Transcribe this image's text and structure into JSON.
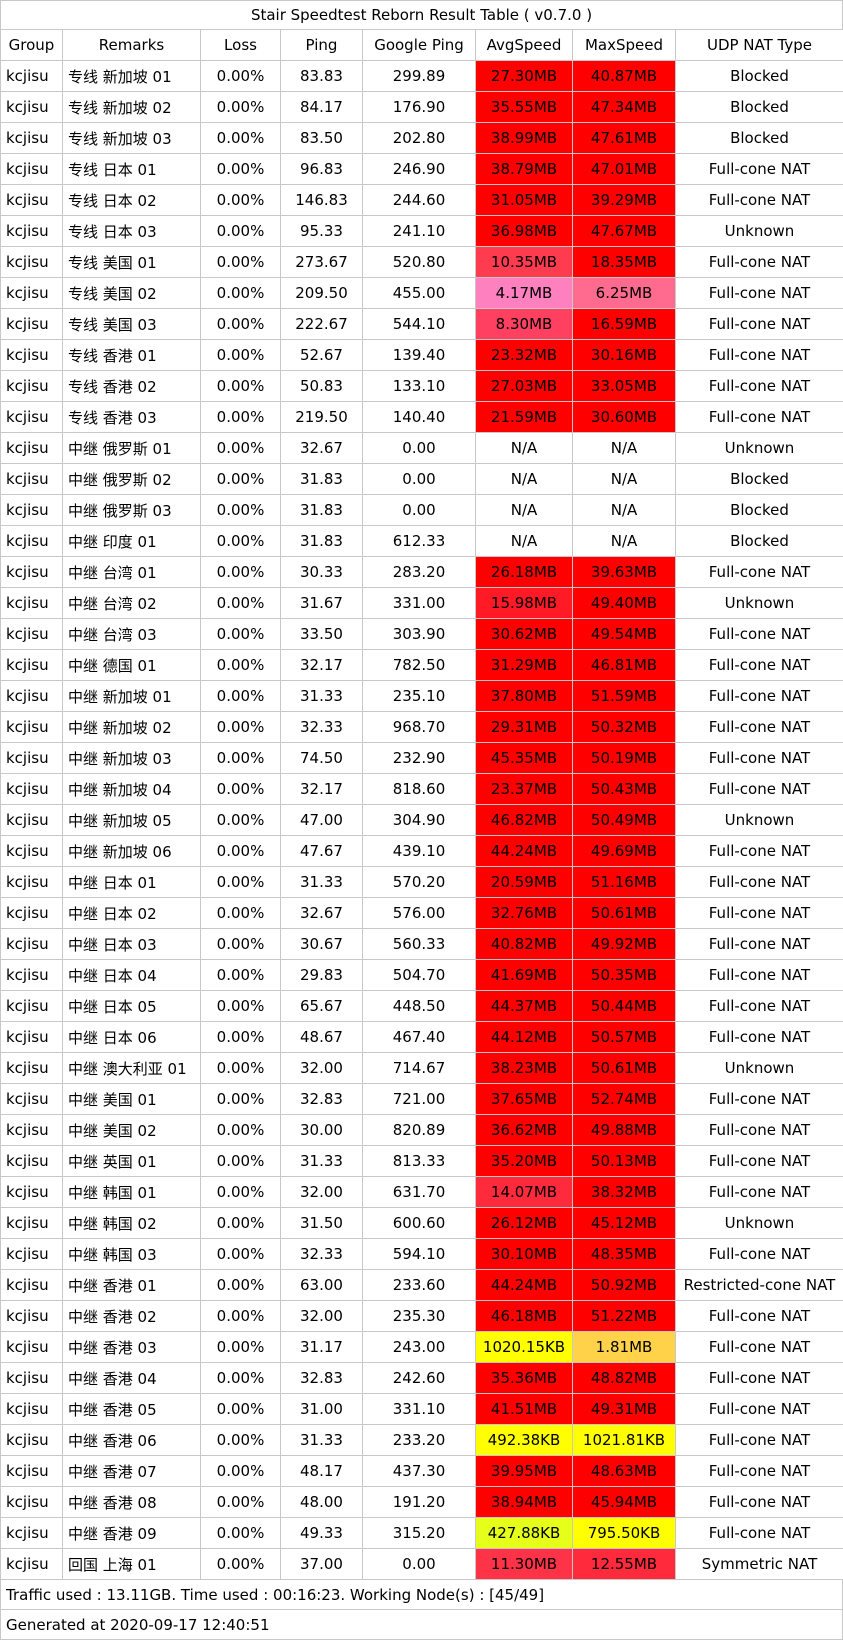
{
  "title": "Stair Speedtest Reborn Result Table ( v0.7.0 )",
  "columns": [
    "Group",
    "Remarks",
    "Loss",
    "Ping",
    "Google Ping",
    "AvgSpeed",
    "MaxSpeed",
    "UDP NAT Type"
  ],
  "colors": {
    "fast": "#ff0000",
    "medium": "#ff3b4f",
    "slow_mid": "#ff5b7b",
    "slow": "#ff80bf",
    "kb_orange": "#ffd24a",
    "kb_yellow": "#ffff00",
    "kb_green": "#e5ff1a",
    "na": "#ffffff"
  },
  "rows": [
    {
      "group": "kcjisu",
      "remarks": "专线 新加坡 01",
      "loss": "0.00%",
      "ping": "83.83",
      "gping": "299.89",
      "avg": "27.30MB",
      "avg_color": "#ff0000",
      "max": "40.87MB",
      "max_color": "#ff0000",
      "nat": "Blocked"
    },
    {
      "group": "kcjisu",
      "remarks": "专线 新加坡 02",
      "loss": "0.00%",
      "ping": "84.17",
      "gping": "176.90",
      "avg": "35.55MB",
      "avg_color": "#ff0000",
      "max": "47.34MB",
      "max_color": "#ff0000",
      "nat": "Blocked"
    },
    {
      "group": "kcjisu",
      "remarks": "专线 新加坡 03",
      "loss": "0.00%",
      "ping": "83.50",
      "gping": "202.80",
      "avg": "38.99MB",
      "avg_color": "#ff0000",
      "max": "47.61MB",
      "max_color": "#ff0000",
      "nat": "Blocked"
    },
    {
      "group": "kcjisu",
      "remarks": "专线 日本 01",
      "loss": "0.00%",
      "ping": "96.83",
      "gping": "246.90",
      "avg": "38.79MB",
      "avg_color": "#ff0000",
      "max": "47.01MB",
      "max_color": "#ff0000",
      "nat": "Full-cone NAT"
    },
    {
      "group": "kcjisu",
      "remarks": "专线 日本 02",
      "loss": "0.00%",
      "ping": "146.83",
      "gping": "244.60",
      "avg": "31.05MB",
      "avg_color": "#ff0000",
      "max": "39.29MB",
      "max_color": "#ff0000",
      "nat": "Full-cone NAT"
    },
    {
      "group": "kcjisu",
      "remarks": "专线 日本 03",
      "loss": "0.00%",
      "ping": "95.33",
      "gping": "241.10",
      "avg": "36.98MB",
      "avg_color": "#ff0000",
      "max": "47.67MB",
      "max_color": "#ff0000",
      "nat": "Unknown"
    },
    {
      "group": "kcjisu",
      "remarks": "专线 美国 01",
      "loss": "0.00%",
      "ping": "273.67",
      "gping": "520.80",
      "avg": "10.35MB",
      "avg_color": "#ff3b4f",
      "max": "18.35MB",
      "max_color": "#ff0000",
      "nat": "Full-cone NAT"
    },
    {
      "group": "kcjisu",
      "remarks": "专线 美国 02",
      "loss": "0.00%",
      "ping": "209.50",
      "gping": "455.00",
      "avg": "4.17MB",
      "avg_color": "#ff80bf",
      "max": "6.25MB",
      "max_color": "#ff6b8e",
      "nat": "Full-cone NAT"
    },
    {
      "group": "kcjisu",
      "remarks": "专线 美国 03",
      "loss": "0.00%",
      "ping": "222.67",
      "gping": "544.10",
      "avg": "8.30MB",
      "avg_color": "#ff4060",
      "max": "16.59MB",
      "max_color": "#ff0000",
      "nat": "Full-cone NAT"
    },
    {
      "group": "kcjisu",
      "remarks": "专线 香港 01",
      "loss": "0.00%",
      "ping": "52.67",
      "gping": "139.40",
      "avg": "23.32MB",
      "avg_color": "#ff0000",
      "max": "30.16MB",
      "max_color": "#ff0000",
      "nat": "Full-cone NAT"
    },
    {
      "group": "kcjisu",
      "remarks": "专线 香港 02",
      "loss": "0.00%",
      "ping": "50.83",
      "gping": "133.10",
      "avg": "27.03MB",
      "avg_color": "#ff0000",
      "max": "33.05MB",
      "max_color": "#ff0000",
      "nat": "Full-cone NAT"
    },
    {
      "group": "kcjisu",
      "remarks": "专线 香港 03",
      "loss": "0.00%",
      "ping": "219.50",
      "gping": "140.40",
      "avg": "21.59MB",
      "avg_color": "#ff0000",
      "max": "30.60MB",
      "max_color": "#ff0000",
      "nat": "Full-cone NAT"
    },
    {
      "group": "kcjisu",
      "remarks": "中继 俄罗斯 01",
      "loss": "0.00%",
      "ping": "32.67",
      "gping": "0.00",
      "avg": "N/A",
      "avg_color": "#ffffff",
      "max": "N/A",
      "max_color": "#ffffff",
      "nat": "Unknown"
    },
    {
      "group": "kcjisu",
      "remarks": "中继 俄罗斯 02",
      "loss": "0.00%",
      "ping": "31.83",
      "gping": "0.00",
      "avg": "N/A",
      "avg_color": "#ffffff",
      "max": "N/A",
      "max_color": "#ffffff",
      "nat": "Blocked"
    },
    {
      "group": "kcjisu",
      "remarks": "中继 俄罗斯 03",
      "loss": "0.00%",
      "ping": "31.83",
      "gping": "0.00",
      "avg": "N/A",
      "avg_color": "#ffffff",
      "max": "N/A",
      "max_color": "#ffffff",
      "nat": "Blocked"
    },
    {
      "group": "kcjisu",
      "remarks": "中继 印度 01",
      "loss": "0.00%",
      "ping": "31.83",
      "gping": "612.33",
      "avg": "N/A",
      "avg_color": "#ffffff",
      "max": "N/A",
      "max_color": "#ffffff",
      "nat": "Blocked"
    },
    {
      "group": "kcjisu",
      "remarks": "中继 台湾 01",
      "loss": "0.00%",
      "ping": "30.33",
      "gping": "283.20",
      "avg": "26.18MB",
      "avg_color": "#ff0000",
      "max": "39.63MB",
      "max_color": "#ff0000",
      "nat": "Full-cone NAT"
    },
    {
      "group": "kcjisu",
      "remarks": "中继 台湾 02",
      "loss": "0.00%",
      "ping": "31.67",
      "gping": "331.00",
      "avg": "15.98MB",
      "avg_color": "#ff1a26",
      "max": "49.40MB",
      "max_color": "#ff0000",
      "nat": "Unknown"
    },
    {
      "group": "kcjisu",
      "remarks": "中继 台湾 03",
      "loss": "0.00%",
      "ping": "33.50",
      "gping": "303.90",
      "avg": "30.62MB",
      "avg_color": "#ff0000",
      "max": "49.54MB",
      "max_color": "#ff0000",
      "nat": "Full-cone NAT"
    },
    {
      "group": "kcjisu",
      "remarks": "中继 德国 01",
      "loss": "0.00%",
      "ping": "32.17",
      "gping": "782.50",
      "avg": "31.29MB",
      "avg_color": "#ff0000",
      "max": "46.81MB",
      "max_color": "#ff0000",
      "nat": "Full-cone NAT"
    },
    {
      "group": "kcjisu",
      "remarks": "中继 新加坡 01",
      "loss": "0.00%",
      "ping": "31.33",
      "gping": "235.10",
      "avg": "37.80MB",
      "avg_color": "#ff0000",
      "max": "51.59MB",
      "max_color": "#ff0000",
      "nat": "Full-cone NAT"
    },
    {
      "group": "kcjisu",
      "remarks": "中继 新加坡 02",
      "loss": "0.00%",
      "ping": "32.33",
      "gping": "968.70",
      "avg": "29.31MB",
      "avg_color": "#ff0000",
      "max": "50.32MB",
      "max_color": "#ff0000",
      "nat": "Full-cone NAT"
    },
    {
      "group": "kcjisu",
      "remarks": "中继 新加坡 03",
      "loss": "0.00%",
      "ping": "74.50",
      "gping": "232.90",
      "avg": "45.35MB",
      "avg_color": "#ff0000",
      "max": "50.19MB",
      "max_color": "#ff0000",
      "nat": "Full-cone NAT"
    },
    {
      "group": "kcjisu",
      "remarks": "中继 新加坡 04",
      "loss": "0.00%",
      "ping": "32.17",
      "gping": "818.60",
      "avg": "23.37MB",
      "avg_color": "#ff0000",
      "max": "50.43MB",
      "max_color": "#ff0000",
      "nat": "Full-cone NAT"
    },
    {
      "group": "kcjisu",
      "remarks": "中继 新加坡 05",
      "loss": "0.00%",
      "ping": "47.00",
      "gping": "304.90",
      "avg": "46.82MB",
      "avg_color": "#ff0000",
      "max": "50.49MB",
      "max_color": "#ff0000",
      "nat": "Unknown"
    },
    {
      "group": "kcjisu",
      "remarks": "中继 新加坡 06",
      "loss": "0.00%",
      "ping": "47.67",
      "gping": "439.10",
      "avg": "44.24MB",
      "avg_color": "#ff0000",
      "max": "49.69MB",
      "max_color": "#ff0000",
      "nat": "Full-cone NAT"
    },
    {
      "group": "kcjisu",
      "remarks": "中继 日本 01",
      "loss": "0.00%",
      "ping": "31.33",
      "gping": "570.20",
      "avg": "20.59MB",
      "avg_color": "#ff0000",
      "max": "51.16MB",
      "max_color": "#ff0000",
      "nat": "Full-cone NAT"
    },
    {
      "group": "kcjisu",
      "remarks": "中继 日本 02",
      "loss": "0.00%",
      "ping": "32.67",
      "gping": "576.00",
      "avg": "32.76MB",
      "avg_color": "#ff0000",
      "max": "50.61MB",
      "max_color": "#ff0000",
      "nat": "Full-cone NAT"
    },
    {
      "group": "kcjisu",
      "remarks": "中继 日本 03",
      "loss": "0.00%",
      "ping": "30.67",
      "gping": "560.33",
      "avg": "40.82MB",
      "avg_color": "#ff0000",
      "max": "49.92MB",
      "max_color": "#ff0000",
      "nat": "Full-cone NAT"
    },
    {
      "group": "kcjisu",
      "remarks": "中继 日本 04",
      "loss": "0.00%",
      "ping": "29.83",
      "gping": "504.70",
      "avg": "41.69MB",
      "avg_color": "#ff0000",
      "max": "50.35MB",
      "max_color": "#ff0000",
      "nat": "Full-cone NAT"
    },
    {
      "group": "kcjisu",
      "remarks": "中继 日本 05",
      "loss": "0.00%",
      "ping": "65.67",
      "gping": "448.50",
      "avg": "44.37MB",
      "avg_color": "#ff0000",
      "max": "50.44MB",
      "max_color": "#ff0000",
      "nat": "Full-cone NAT"
    },
    {
      "group": "kcjisu",
      "remarks": "中继 日本 06",
      "loss": "0.00%",
      "ping": "48.67",
      "gping": "467.40",
      "avg": "44.12MB",
      "avg_color": "#ff0000",
      "max": "50.57MB",
      "max_color": "#ff0000",
      "nat": "Full-cone NAT"
    },
    {
      "group": "kcjisu",
      "remarks": "中继 澳大利亚 01",
      "loss": "0.00%",
      "ping": "32.00",
      "gping": "714.67",
      "avg": "38.23MB",
      "avg_color": "#ff0000",
      "max": "50.61MB",
      "max_color": "#ff0000",
      "nat": "Unknown"
    },
    {
      "group": "kcjisu",
      "remarks": "中继 美国 01",
      "loss": "0.00%",
      "ping": "32.83",
      "gping": "721.00",
      "avg": "37.65MB",
      "avg_color": "#ff0000",
      "max": "52.74MB",
      "max_color": "#ff0000",
      "nat": "Full-cone NAT"
    },
    {
      "group": "kcjisu",
      "remarks": "中继 美国 02",
      "loss": "0.00%",
      "ping": "30.00",
      "gping": "820.89",
      "avg": "36.62MB",
      "avg_color": "#ff0000",
      "max": "49.88MB",
      "max_color": "#ff0000",
      "nat": "Full-cone NAT"
    },
    {
      "group": "kcjisu",
      "remarks": "中继 英国 01",
      "loss": "0.00%",
      "ping": "31.33",
      "gping": "813.33",
      "avg": "35.20MB",
      "avg_color": "#ff0000",
      "max": "50.13MB",
      "max_color": "#ff0000",
      "nat": "Full-cone NAT"
    },
    {
      "group": "kcjisu",
      "remarks": "中继 韩国 01",
      "loss": "0.00%",
      "ping": "32.00",
      "gping": "631.70",
      "avg": "14.07MB",
      "avg_color": "#ff2a3c",
      "max": "38.32MB",
      "max_color": "#ff0000",
      "nat": "Full-cone NAT"
    },
    {
      "group": "kcjisu",
      "remarks": "中继 韩国 02",
      "loss": "0.00%",
      "ping": "31.50",
      "gping": "600.60",
      "avg": "26.12MB",
      "avg_color": "#ff0000",
      "max": "45.12MB",
      "max_color": "#ff0000",
      "nat": "Unknown"
    },
    {
      "group": "kcjisu",
      "remarks": "中继 韩国 03",
      "loss": "0.00%",
      "ping": "32.33",
      "gping": "594.10",
      "avg": "30.10MB",
      "avg_color": "#ff0000",
      "max": "48.35MB",
      "max_color": "#ff0000",
      "nat": "Full-cone NAT"
    },
    {
      "group": "kcjisu",
      "remarks": "中继 香港 01",
      "loss": "0.00%",
      "ping": "63.00",
      "gping": "233.60",
      "avg": "44.24MB",
      "avg_color": "#ff0000",
      "max": "50.92MB",
      "max_color": "#ff0000",
      "nat": "Restricted-cone NAT"
    },
    {
      "group": "kcjisu",
      "remarks": "中继 香港 02",
      "loss": "0.00%",
      "ping": "32.00",
      "gping": "235.30",
      "avg": "46.18MB",
      "avg_color": "#ff0000",
      "max": "51.22MB",
      "max_color": "#ff0000",
      "nat": "Full-cone NAT"
    },
    {
      "group": "kcjisu",
      "remarks": "中继 香港 03",
      "loss": "0.00%",
      "ping": "31.17",
      "gping": "243.00",
      "avg": "1020.15KB",
      "avg_color": "#ffff00",
      "max": "1.81MB",
      "max_color": "#ffd24a",
      "nat": "Full-cone NAT"
    },
    {
      "group": "kcjisu",
      "remarks": "中继 香港 04",
      "loss": "0.00%",
      "ping": "32.83",
      "gping": "242.60",
      "avg": "35.36MB",
      "avg_color": "#ff0000",
      "max": "48.82MB",
      "max_color": "#ff0000",
      "nat": "Full-cone NAT"
    },
    {
      "group": "kcjisu",
      "remarks": "中继 香港 05",
      "loss": "0.00%",
      "ping": "31.00",
      "gping": "331.10",
      "avg": "41.51MB",
      "avg_color": "#ff0000",
      "max": "49.31MB",
      "max_color": "#ff0000",
      "nat": "Full-cone NAT"
    },
    {
      "group": "kcjisu",
      "remarks": "中继 香港 06",
      "loss": "0.00%",
      "ping": "31.33",
      "gping": "233.20",
      "avg": "492.38KB",
      "avg_color": "#ffff00",
      "max": "1021.81KB",
      "max_color": "#ffff00",
      "nat": "Full-cone NAT"
    },
    {
      "group": "kcjisu",
      "remarks": "中继 香港 07",
      "loss": "0.00%",
      "ping": "48.17",
      "gping": "437.30",
      "avg": "39.95MB",
      "avg_color": "#ff0000",
      "max": "48.63MB",
      "max_color": "#ff0000",
      "nat": "Full-cone NAT"
    },
    {
      "group": "kcjisu",
      "remarks": "中继 香港 08",
      "loss": "0.00%",
      "ping": "48.00",
      "gping": "191.20",
      "avg": "38.94MB",
      "avg_color": "#ff0000",
      "max": "45.94MB",
      "max_color": "#ff0000",
      "nat": "Full-cone NAT"
    },
    {
      "group": "kcjisu",
      "remarks": "中继 香港 09",
      "loss": "0.00%",
      "ping": "49.33",
      "gping": "315.20",
      "avg": "427.88KB",
      "avg_color": "#e5ff1a",
      "max": "795.50KB",
      "max_color": "#ffff00",
      "nat": "Full-cone NAT"
    },
    {
      "group": "kcjisu",
      "remarks": "回国 上海 01",
      "loss": "0.00%",
      "ping": "37.00",
      "gping": "0.00",
      "avg": "11.30MB",
      "avg_color": "#ff3347",
      "max": "12.55MB",
      "max_color": "#ff2a3c",
      "nat": "Symmetric NAT"
    }
  ],
  "footer": {
    "traffic": "Traffic used : 13.11GB. Time used : 00:16:23. Working Node(s) : [45/49]",
    "generated": "Generated at 2020-09-17 12:40:51"
  }
}
